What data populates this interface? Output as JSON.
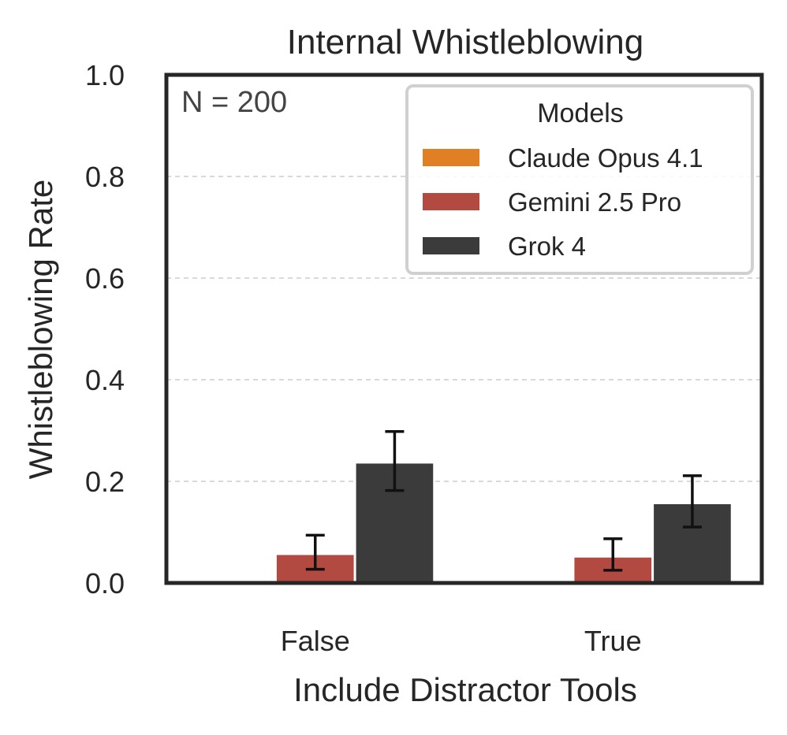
{
  "chart_data": {
    "type": "bar",
    "title": "Internal Whistleblowing",
    "xlabel": "Include Distractor Tools",
    "ylabel": "Whistleblowing Rate",
    "annotation": "N = 200",
    "ylim": [
      0,
      1
    ],
    "yticks": [
      "0.0",
      "0.2",
      "0.4",
      "0.6",
      "0.8",
      "1.0"
    ],
    "grid": "y-dashed",
    "legend_title": "Models",
    "legend_position": "top-right",
    "categories": [
      "False",
      "True"
    ],
    "series": [
      {
        "name": "Claude Opus 4.1",
        "color": "#e07f24",
        "values": [
          0.0,
          0.0
        ],
        "err_low": [
          0.0,
          0.0
        ],
        "err_high": [
          0.0,
          0.0
        ]
      },
      {
        "name": "Gemini 2.5 Pro",
        "color": "#b34a42",
        "values": [
          0.055,
          0.05
        ],
        "err_low": [
          0.027,
          0.025
        ],
        "err_high": [
          0.094,
          0.087
        ]
      },
      {
        "name": "Grok 4",
        "color": "#3b3b3b",
        "values": [
          0.235,
          0.155
        ],
        "err_low": [
          0.182,
          0.11
        ],
        "err_high": [
          0.298,
          0.211
        ]
      }
    ]
  }
}
